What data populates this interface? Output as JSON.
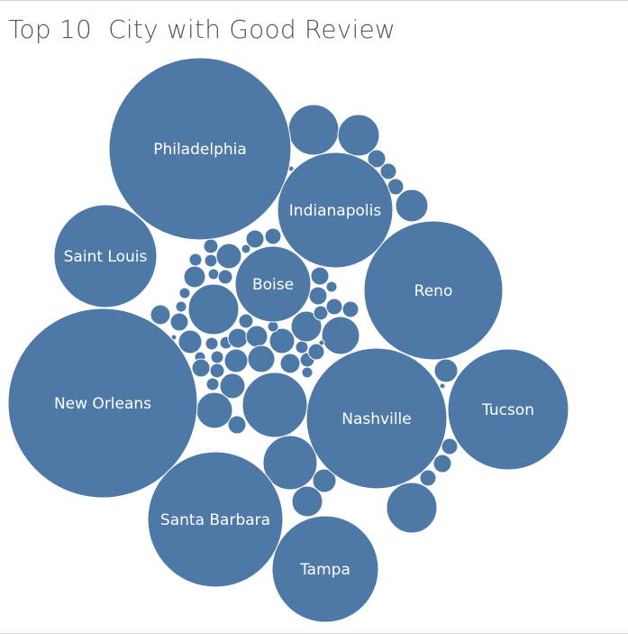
{
  "chart_data": {
    "type": "bubble",
    "title": "Top 10  City with Good Review",
    "color": "#4e79a7",
    "stroke": "#ffffff",
    "labeled_cities": [
      "Philadelphia",
      "New Orleans",
      "Tampa",
      "Nashville",
      "Santa Barbara",
      "Reno",
      "Tucson",
      "Indianapolis",
      "Saint Louis",
      "Boise"
    ],
    "values": {
      "New Orleans": 100,
      "Philadelphia": 92,
      "Reno": 55,
      "Tucson": 41,
      "Indianapolis": 37,
      "Nashville": 56,
      "Santa Barbara": 51,
      "Tampa": 32,
      "Saint Louis": 31,
      "Boise": 16
    }
  }
}
